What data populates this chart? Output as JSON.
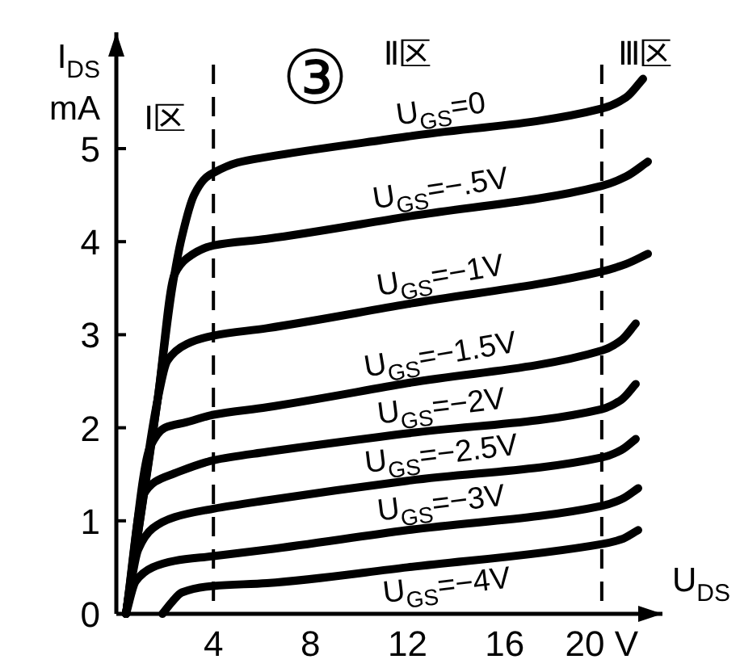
{
  "chart_data": {
    "type": "line",
    "title": "③",
    "xlabel": "U$_{DS}$",
    "ylabel": "I$_{DS}$\nmA",
    "xlim": [
      0,
      22.5
    ],
    "ylim": [
      0,
      6.25
    ],
    "xticks": [
      4,
      8,
      12,
      16,
      {
        "value": 20,
        "label": "20 V"
      }
    ],
    "yticks": [
      0,
      1,
      2,
      3,
      4,
      5
    ],
    "series": [
      {
        "name": "U$_{GS}$=0",
        "color": "#000000",
        "x": [
          0.4,
          1.7,
          2.3,
          2.7,
          3.2,
          3.7,
          4,
          5,
          6.2,
          12,
          20,
          21,
          21.7
        ],
        "values": [
          0,
          2.3,
          3.5,
          4.05,
          4.5,
          4.69,
          4.74,
          4.85,
          4.91,
          5.13,
          5.43,
          5.55,
          5.75
        ]
      },
      {
        "name": "U$_{GS}$=−.5V",
        "color": "#000000",
        "x": [
          0.4,
          1.7,
          2.4,
          2.9,
          4,
          6.2,
          12,
          20,
          21,
          21.9
        ],
        "values": [
          0,
          2.3,
          3.65,
          3.82,
          3.96,
          4.03,
          4.27,
          4.6,
          4.7,
          4.86
        ]
      },
      {
        "name": "U$_{GS}$=−1V",
        "color": "#000000",
        "x": [
          0.4,
          1.7,
          2.1,
          2.9,
          4,
          6.2,
          12,
          20,
          21,
          21.9
        ],
        "values": [
          0,
          2.3,
          2.72,
          2.9,
          2.99,
          3.07,
          3.33,
          3.68,
          3.76,
          3.87
        ]
      },
      {
        "name": "U$_{GS}$=−1.5V",
        "color": "#000000",
        "x": [
          0.4,
          1.4,
          2.0,
          2.9,
          4,
          6.2,
          12,
          20,
          20.8,
          21.4
        ],
        "values": [
          0,
          1.8,
          2.0,
          2.06,
          2.14,
          2.22,
          2.48,
          2.83,
          2.94,
          3.12
        ]
      },
      {
        "name": "U$_{GS}$=−2V",
        "color": "#000000",
        "x": [
          0.4,
          1.1,
          1.6,
          2.4,
          4,
          6.2,
          12,
          20,
          20.8,
          21.4
        ],
        "values": [
          0,
          1.27,
          1.42,
          1.51,
          1.65,
          1.74,
          1.94,
          2.2,
          2.3,
          2.47
        ]
      },
      {
        "name": "U$_{GS}$=−2.5V",
        "color": "#000000",
        "x": [
          0.4,
          0.9,
          1.5,
          2.4,
          4,
          6.2,
          12,
          20,
          20.8,
          21.4
        ],
        "values": [
          0,
          0.69,
          0.92,
          1.04,
          1.13,
          1.22,
          1.43,
          1.68,
          1.76,
          1.88
        ]
      },
      {
        "name": "U$_{GS}$=−3V",
        "color": "#000000",
        "x": [
          0.4,
          0.8,
          1.5,
          2.4,
          4,
          6.2,
          12,
          20,
          20.8,
          21.5
        ],
        "values": [
          0,
          0.35,
          0.5,
          0.57,
          0.62,
          0.69,
          0.9,
          1.16,
          1.23,
          1.35
        ]
      },
      {
        "name": "U$_{GS}$=−4V",
        "color": "#000000",
        "x": [
          1.9,
          2.3,
          2.7,
          4,
          6.2,
          12,
          20,
          20.8,
          21.5
        ],
        "values": [
          0,
          0.13,
          0.23,
          0.3,
          0.33,
          0.5,
          0.75,
          0.8,
          0.9
        ]
      }
    ],
    "ref_lines": [
      {
        "axis": "x",
        "value": 4,
        "line_style": "dashed"
      },
      {
        "axis": "x",
        "value": 20,
        "line_style": "dashed"
      }
    ],
    "annotations": [
      "Ⅰ区",
      "Ⅱ区",
      "Ⅲ区"
    ]
  }
}
